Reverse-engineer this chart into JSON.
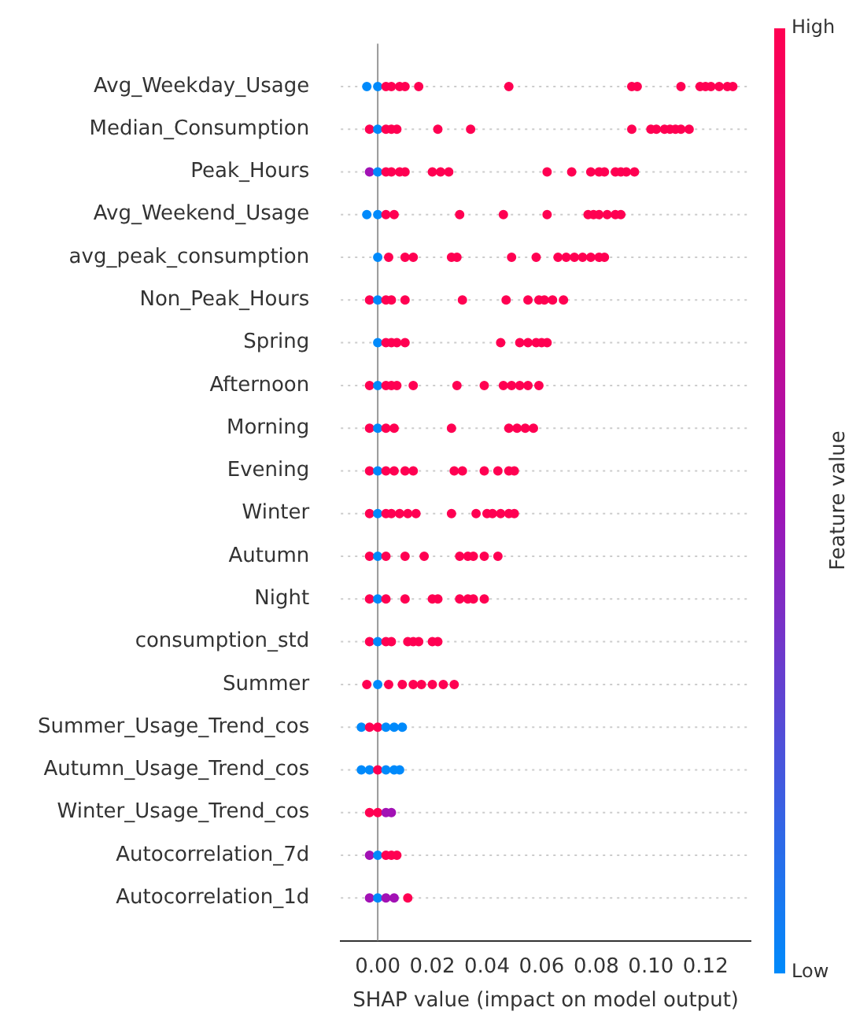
{
  "chart_data": {
    "type": "scatter",
    "orientation": "horizontal",
    "xlabel": "SHAP value (impact on model output)",
    "clabel": "Feature value",
    "clim": [
      0,
      1
    ],
    "cticks": [
      {
        "value": 0,
        "label": "Low"
      },
      {
        "value": 1,
        "label": "High"
      }
    ],
    "categories": [
      "Avg_Weekday_Usage",
      "Median_Consumption",
      "Peak_Hours",
      "Avg_Weekend_Usage",
      "avg_peak_consumption",
      "Non_Peak_Hours",
      "Spring",
      "Afternoon",
      "Morning",
      "Evening",
      "Winter",
      "Autumn",
      "Night",
      "consumption_std",
      "Summer",
      "Summer_Usage_Trend_cos",
      "Autumn_Usage_Trend_cos",
      "Winter_Usage_Trend_cos",
      "Autocorrelation_7d",
      "Autocorrelation_1d"
    ],
    "xlim": [
      -0.0135,
      0.1365
    ],
    "xticks": [
      {
        "value": 0,
        "label": "0.00"
      },
      {
        "value": 0.02,
        "label": "0.02"
      },
      {
        "value": 0.04,
        "label": "0.04"
      },
      {
        "value": 0.06,
        "label": "0.06"
      },
      {
        "value": 0.08,
        "label": "0.08"
      },
      {
        "value": 0.1,
        "label": "0.10"
      },
      {
        "value": 0.12,
        "label": "0.12"
      }
    ],
    "grid": "y",
    "marker": "circle",
    "legend": false,
    "ref_lines": [
      {
        "axis": "x",
        "value": 0
      }
    ],
    "series": [
      {
        "x": [
          "Avg_Weekday_Usage",
          "Avg_Weekday_Usage",
          "Avg_Weekday_Usage",
          "Avg_Weekday_Usage",
          "Avg_Weekday_Usage",
          "Avg_Weekday_Usage",
          "Avg_Weekday_Usage",
          "Avg_Weekday_Usage",
          "Avg_Weekday_Usage",
          "Avg_Weekday_Usage",
          "Avg_Weekday_Usage",
          "Avg_Weekday_Usage",
          "Avg_Weekday_Usage",
          "Avg_Weekday_Usage",
          "Avg_Weekday_Usage",
          "Avg_Weekday_Usage",
          "Avg_Weekday_Usage"
        ],
        "values": [
          -0.004,
          0,
          0.003,
          0.005,
          0.008,
          0.01,
          0.015,
          0.048,
          0.093,
          0.095,
          0.111,
          0.118,
          0.12,
          0.122,
          0.125,
          0.128,
          0.13
        ],
        "cvalues": [
          0,
          0,
          1,
          1,
          1,
          1,
          1,
          1,
          1,
          1,
          1,
          1,
          1,
          1,
          1,
          1,
          1
        ],
        "colors": [
          "#008afb",
          "#008afb",
          "#ff0052",
          "#ff0052",
          "#ff0052",
          "#ff0052",
          "#ff0052",
          "#ff0052",
          "#ff0052",
          "#ff0052",
          "#ff0052",
          "#ff0052",
          "#ff0052",
          "#ff0052",
          "#ff0052",
          "#ff0052",
          "#ff0052"
        ]
      },
      {
        "x": [
          "Median_Consumption",
          "Median_Consumption",
          "Median_Consumption",
          "Median_Consumption",
          "Median_Consumption",
          "Median_Consumption",
          "Median_Consumption",
          "Median_Consumption",
          "Median_Consumption",
          "Median_Consumption",
          "Median_Consumption",
          "Median_Consumption",
          "Median_Consumption",
          "Median_Consumption",
          "Median_Consumption"
        ],
        "values": [
          -0.003,
          0,
          0.003,
          0.005,
          0.007,
          0.022,
          0.034,
          0.093,
          0.1,
          0.102,
          0.105,
          0.107,
          0.109,
          0.111,
          0.114
        ],
        "cvalues": [
          1,
          0,
          1,
          1,
          1,
          1,
          1,
          1,
          1,
          1,
          1,
          1,
          1,
          1,
          1
        ],
        "colors": [
          "#ff0052",
          "#008afb",
          "#ff0052",
          "#ff0052",
          "#ff0052",
          "#ff0052",
          "#ff0052",
          "#ff0052",
          "#ff0052",
          "#ff0052",
          "#ff0052",
          "#ff0052",
          "#ff0052",
          "#ff0052",
          "#ff0052"
        ]
      },
      {
        "x": [
          "Peak_Hours",
          "Peak_Hours",
          "Peak_Hours",
          "Peak_Hours",
          "Peak_Hours",
          "Peak_Hours",
          "Peak_Hours",
          "Peak_Hours",
          "Peak_Hours",
          "Peak_Hours",
          "Peak_Hours",
          "Peak_Hours",
          "Peak_Hours",
          "Peak_Hours",
          "Peak_Hours",
          "Peak_Hours",
          "Peak_Hours",
          "Peak_Hours"
        ],
        "values": [
          -0.003,
          0,
          0.003,
          0.005,
          0.008,
          0.01,
          0.02,
          0.023,
          0.026,
          0.062,
          0.071,
          0.078,
          0.081,
          0.083,
          0.087,
          0.089,
          0.091,
          0.094
        ],
        "cvalues": [
          0.5,
          0,
          1,
          1,
          1,
          1,
          1,
          1,
          1,
          1,
          1,
          1,
          1,
          1,
          1,
          1,
          1,
          1
        ],
        "colors": [
          "#a212b5",
          "#008afb",
          "#ff0052",
          "#ff0052",
          "#ff0052",
          "#ff0052",
          "#ff0052",
          "#ff0052",
          "#ff0052",
          "#ff0052",
          "#ff0052",
          "#ff0052",
          "#ff0052",
          "#ff0052",
          "#ff0052",
          "#ff0052",
          "#ff0052",
          "#ff0052"
        ]
      },
      {
        "x": [
          "Avg_Weekend_Usage",
          "Avg_Weekend_Usage",
          "Avg_Weekend_Usage",
          "Avg_Weekend_Usage",
          "Avg_Weekend_Usage",
          "Avg_Weekend_Usage",
          "Avg_Weekend_Usage",
          "Avg_Weekend_Usage",
          "Avg_Weekend_Usage",
          "Avg_Weekend_Usage",
          "Avg_Weekend_Usage",
          "Avg_Weekend_Usage",
          "Avg_Weekend_Usage"
        ],
        "values": [
          -0.004,
          0,
          0.003,
          0.006,
          0.03,
          0.046,
          0.062,
          0.077,
          0.079,
          0.081,
          0.084,
          0.087,
          0.089
        ],
        "cvalues": [
          0,
          0,
          1,
          1,
          1,
          1,
          1,
          1,
          1,
          1,
          1,
          1,
          1
        ],
        "colors": [
          "#008afb",
          "#008afb",
          "#ff0052",
          "#ff0052",
          "#ff0052",
          "#ff0052",
          "#ff0052",
          "#ff0052",
          "#ff0052",
          "#ff0052",
          "#ff0052",
          "#ff0052",
          "#ff0052"
        ]
      },
      {
        "x": [
          "avg_peak_consumption",
          "avg_peak_consumption",
          "avg_peak_consumption",
          "avg_peak_consumption",
          "avg_peak_consumption",
          "avg_peak_consumption",
          "avg_peak_consumption",
          "avg_peak_consumption",
          "avg_peak_consumption",
          "avg_peak_consumption",
          "avg_peak_consumption",
          "avg_peak_consumption",
          "avg_peak_consumption",
          "avg_peak_consumption",
          "avg_peak_consumption"
        ],
        "values": [
          0,
          0.004,
          0.01,
          0.013,
          0.027,
          0.029,
          0.049,
          0.058,
          0.066,
          0.069,
          0.072,
          0.075,
          0.078,
          0.081,
          0.083
        ],
        "cvalues": [
          0,
          1,
          1,
          1,
          1,
          1,
          1,
          1,
          1,
          1,
          1,
          1,
          1,
          1,
          1
        ],
        "colors": [
          "#008afb",
          "#ff0052",
          "#ff0052",
          "#ff0052",
          "#ff0052",
          "#ff0052",
          "#ff0052",
          "#ff0052",
          "#ff0052",
          "#ff0052",
          "#ff0052",
          "#ff0052",
          "#ff0052",
          "#ff0052",
          "#ff0052"
        ]
      },
      {
        "x": [
          "Non_Peak_Hours",
          "Non_Peak_Hours",
          "Non_Peak_Hours",
          "Non_Peak_Hours",
          "Non_Peak_Hours",
          "Non_Peak_Hours",
          "Non_Peak_Hours",
          "Non_Peak_Hours",
          "Non_Peak_Hours",
          "Non_Peak_Hours",
          "Non_Peak_Hours",
          "Non_Peak_Hours"
        ],
        "values": [
          -0.003,
          0,
          0.003,
          0.005,
          0.01,
          0.031,
          0.047,
          0.055,
          0.059,
          0.061,
          0.064,
          0.068
        ],
        "cvalues": [
          1,
          0,
          1,
          1,
          1,
          1,
          1,
          1,
          1,
          1,
          1,
          1
        ],
        "colors": [
          "#ff0052",
          "#008afb",
          "#ff0052",
          "#ff0052",
          "#ff0052",
          "#ff0052",
          "#ff0052",
          "#ff0052",
          "#ff0052",
          "#ff0052",
          "#ff0052",
          "#ff0052"
        ]
      },
      {
        "x": [
          "Spring",
          "Spring",
          "Spring",
          "Spring",
          "Spring",
          "Spring",
          "Spring",
          "Spring",
          "Spring",
          "Spring",
          "Spring"
        ],
        "values": [
          0,
          0.003,
          0.005,
          0.007,
          0.01,
          0.045,
          0.052,
          0.055,
          0.058,
          0.06,
          0.062
        ],
        "cvalues": [
          0,
          1,
          1,
          1,
          1,
          1,
          1,
          1,
          1,
          1,
          1
        ],
        "colors": [
          "#008afb",
          "#ff0052",
          "#ff0052",
          "#ff0052",
          "#ff0052",
          "#ff0052",
          "#ff0052",
          "#ff0052",
          "#ff0052",
          "#ff0052",
          "#ff0052"
        ]
      },
      {
        "x": [
          "Afternoon",
          "Afternoon",
          "Afternoon",
          "Afternoon",
          "Afternoon",
          "Afternoon",
          "Afternoon",
          "Afternoon",
          "Afternoon",
          "Afternoon",
          "Afternoon",
          "Afternoon",
          "Afternoon"
        ],
        "values": [
          -0.003,
          0,
          0.003,
          0.005,
          0.007,
          0.013,
          0.029,
          0.039,
          0.046,
          0.049,
          0.052,
          0.055,
          0.059
        ],
        "cvalues": [
          1,
          0,
          1,
          1,
          1,
          1,
          1,
          1,
          1,
          1,
          1,
          1,
          1
        ],
        "colors": [
          "#ff0052",
          "#008afb",
          "#ff0052",
          "#ff0052",
          "#ff0052",
          "#ff0052",
          "#ff0052",
          "#ff0052",
          "#ff0052",
          "#ff0052",
          "#ff0052",
          "#ff0052",
          "#ff0052"
        ]
      },
      {
        "x": [
          "Morning",
          "Morning",
          "Morning",
          "Morning",
          "Morning",
          "Morning",
          "Morning",
          "Morning",
          "Morning"
        ],
        "values": [
          -0.003,
          0,
          0.003,
          0.006,
          0.027,
          0.048,
          0.051,
          0.054,
          0.057
        ],
        "cvalues": [
          1,
          0,
          1,
          1,
          1,
          1,
          1,
          1,
          1
        ],
        "colors": [
          "#ff0052",
          "#008afb",
          "#ff0052",
          "#ff0052",
          "#ff0052",
          "#ff0052",
          "#ff0052",
          "#ff0052",
          "#ff0052"
        ]
      },
      {
        "x": [
          "Evening",
          "Evening",
          "Evening",
          "Evening",
          "Evening",
          "Evening",
          "Evening",
          "Evening",
          "Evening",
          "Evening",
          "Evening",
          "Evening"
        ],
        "values": [
          -0.003,
          0,
          0.003,
          0.006,
          0.01,
          0.013,
          0.028,
          0.031,
          0.039,
          0.044,
          0.048,
          0.05
        ],
        "cvalues": [
          1,
          0,
          1,
          1,
          1,
          1,
          1,
          1,
          1,
          1,
          1,
          1
        ],
        "colors": [
          "#ff0052",
          "#008afb",
          "#ff0052",
          "#ff0052",
          "#ff0052",
          "#ff0052",
          "#ff0052",
          "#ff0052",
          "#ff0052",
          "#ff0052",
          "#ff0052",
          "#ff0052"
        ]
      },
      {
        "x": [
          "Winter",
          "Winter",
          "Winter",
          "Winter",
          "Winter",
          "Winter",
          "Winter",
          "Winter",
          "Winter",
          "Winter",
          "Winter",
          "Winter",
          "Winter",
          "Winter"
        ],
        "values": [
          -0.003,
          0,
          0.003,
          0.005,
          0.008,
          0.011,
          0.014,
          0.027,
          0.036,
          0.04,
          0.042,
          0.045,
          0.048,
          0.05
        ],
        "cvalues": [
          1,
          0,
          1,
          1,
          1,
          1,
          1,
          1,
          1,
          1,
          1,
          1,
          1,
          1
        ],
        "colors": [
          "#ff0052",
          "#008afb",
          "#ff0052",
          "#ff0052",
          "#ff0052",
          "#ff0052",
          "#ff0052",
          "#ff0052",
          "#ff0052",
          "#ff0052",
          "#ff0052",
          "#ff0052",
          "#ff0052",
          "#ff0052"
        ]
      },
      {
        "x": [
          "Autumn",
          "Autumn",
          "Autumn",
          "Autumn",
          "Autumn",
          "Autumn",
          "Autumn",
          "Autumn",
          "Autumn",
          "Autumn"
        ],
        "values": [
          -0.003,
          0,
          0.003,
          0.01,
          0.017,
          0.03,
          0.033,
          0.035,
          0.039,
          0.044
        ],
        "cvalues": [
          1,
          0,
          1,
          1,
          1,
          1,
          1,
          1,
          1,
          1
        ],
        "colors": [
          "#ff0052",
          "#008afb",
          "#ff0052",
          "#ff0052",
          "#ff0052",
          "#ff0052",
          "#ff0052",
          "#ff0052",
          "#ff0052",
          "#ff0052"
        ]
      },
      {
        "x": [
          "Night",
          "Night",
          "Night",
          "Night",
          "Night",
          "Night",
          "Night",
          "Night",
          "Night",
          "Night"
        ],
        "values": [
          -0.003,
          0,
          0.003,
          0.01,
          0.02,
          0.022,
          0.03,
          0.033,
          0.035,
          0.039
        ],
        "cvalues": [
          1,
          0,
          1,
          1,
          1,
          1,
          1,
          1,
          1,
          1
        ],
        "colors": [
          "#ff0052",
          "#008afb",
          "#ff0052",
          "#ff0052",
          "#ff0052",
          "#ff0052",
          "#ff0052",
          "#ff0052",
          "#ff0052",
          "#ff0052"
        ]
      },
      {
        "x": [
          "consumption_std",
          "consumption_std",
          "consumption_std",
          "consumption_std",
          "consumption_std",
          "consumption_std",
          "consumption_std",
          "consumption_std",
          "consumption_std"
        ],
        "values": [
          -0.003,
          0,
          0.003,
          0.005,
          0.011,
          0.013,
          0.015,
          0.02,
          0.022
        ],
        "cvalues": [
          1,
          0,
          1,
          1,
          1,
          1,
          1,
          1,
          1
        ],
        "colors": [
          "#ff0052",
          "#008afb",
          "#ff0052",
          "#ff0052",
          "#ff0052",
          "#ff0052",
          "#ff0052",
          "#ff0052",
          "#ff0052"
        ]
      },
      {
        "x": [
          "Summer",
          "Summer",
          "Summer",
          "Summer",
          "Summer",
          "Summer",
          "Summer",
          "Summer",
          "Summer"
        ],
        "values": [
          -0.004,
          0,
          0.004,
          0.009,
          0.013,
          0.016,
          0.02,
          0.024,
          0.028
        ],
        "cvalues": [
          1,
          0,
          1,
          1,
          1,
          1,
          1,
          1,
          1
        ],
        "colors": [
          "#ff0052",
          "#008afb",
          "#ff0052",
          "#ff0052",
          "#ff0052",
          "#ff0052",
          "#ff0052",
          "#ff0052",
          "#ff0052"
        ]
      },
      {
        "x": [
          "Summer_Usage_Trend_cos",
          "Summer_Usage_Trend_cos",
          "Summer_Usage_Trend_cos",
          "Summer_Usage_Trend_cos",
          "Summer_Usage_Trend_cos",
          "Summer_Usage_Trend_cos"
        ],
        "values": [
          -0.006,
          -0.003,
          0,
          0.003,
          0.006,
          0.009
        ],
        "cvalues": [
          0,
          1,
          1,
          0,
          0,
          0
        ],
        "colors": [
          "#008afb",
          "#ff0052",
          "#ff0052",
          "#008afb",
          "#008afb",
          "#008afb"
        ]
      },
      {
        "x": [
          "Autumn_Usage_Trend_cos",
          "Autumn_Usage_Trend_cos",
          "Autumn_Usage_Trend_cos",
          "Autumn_Usage_Trend_cos",
          "Autumn_Usage_Trend_cos",
          "Autumn_Usage_Trend_cos"
        ],
        "values": [
          -0.006,
          -0.003,
          0,
          0.003,
          0.006,
          0.008
        ],
        "cvalues": [
          0,
          0,
          1,
          0,
          0,
          0
        ],
        "colors": [
          "#008afb",
          "#008afb",
          "#ff0052",
          "#008afb",
          "#008afb",
          "#008afb"
        ]
      },
      {
        "x": [
          "Winter_Usage_Trend_cos",
          "Winter_Usage_Trend_cos",
          "Winter_Usage_Trend_cos",
          "Winter_Usage_Trend_cos"
        ],
        "values": [
          -0.003,
          0,
          0.003,
          0.005
        ],
        "cvalues": [
          1,
          1,
          0.5,
          0.5
        ],
        "colors": [
          "#ff0052",
          "#ff0052",
          "#a212b5",
          "#a212b5"
        ]
      },
      {
        "x": [
          "Autocorrelation_7d",
          "Autocorrelation_7d",
          "Autocorrelation_7d",
          "Autocorrelation_7d",
          "Autocorrelation_7d"
        ],
        "values": [
          -0.003,
          0,
          0.003,
          0.005,
          0.007
        ],
        "cvalues": [
          0.5,
          0,
          1,
          1,
          1
        ],
        "colors": [
          "#a212b5",
          "#008afb",
          "#ff0052",
          "#ff0052",
          "#ff0052"
        ]
      },
      {
        "x": [
          "Autocorrelation_1d",
          "Autocorrelation_1d",
          "Autocorrelation_1d",
          "Autocorrelation_1d",
          "Autocorrelation_1d"
        ],
        "values": [
          -0.003,
          0,
          0.003,
          0.006,
          0.011
        ],
        "cvalues": [
          0.5,
          0,
          0.5,
          0.5,
          1
        ],
        "colors": [
          "#a212b5",
          "#008afb",
          "#a212b5",
          "#a212b5",
          "#ff0052"
        ]
      }
    ]
  }
}
